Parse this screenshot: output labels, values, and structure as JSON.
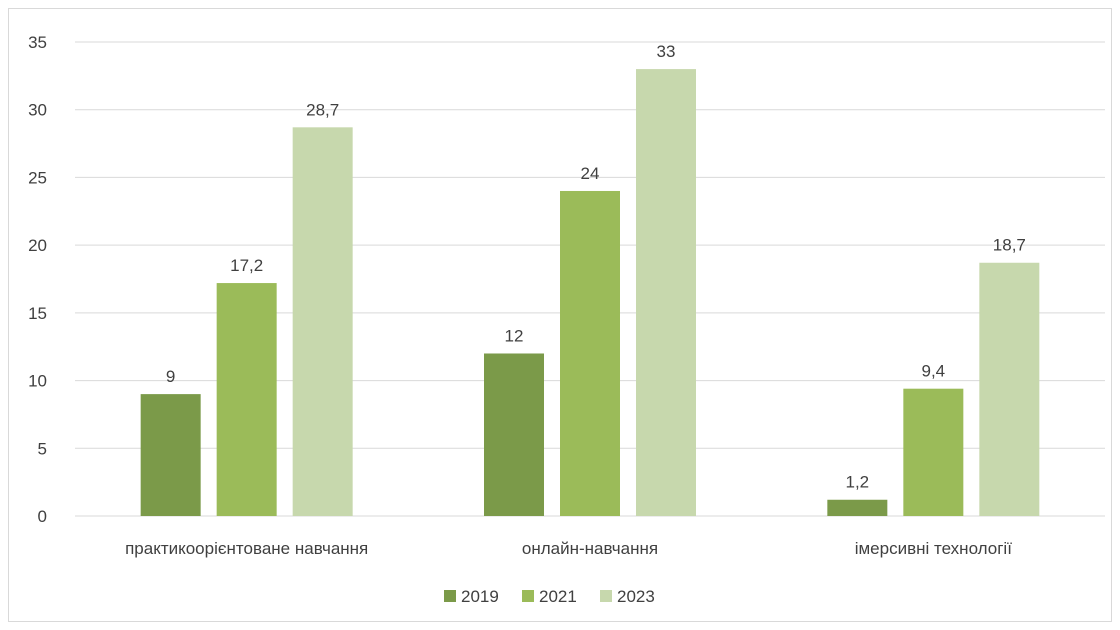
{
  "chart_data": {
    "type": "bar",
    "categories": [
      "практикоорієнтоване навчання",
      "онлайн-навчання",
      "імерсивні технології"
    ],
    "series": [
      {
        "name": "2019",
        "values": [
          9,
          12,
          1.2
        ],
        "labels": [
          "9",
          "12",
          "1,2"
        ],
        "color": "#7b9a49"
      },
      {
        "name": "2021",
        "values": [
          17.2,
          24,
          9.4
        ],
        "labels": [
          "17,2",
          "24",
          "9,4"
        ],
        "color": "#9bbb59"
      },
      {
        "name": "2023",
        "values": [
          28.7,
          33,
          18.7
        ],
        "labels": [
          "28,7",
          "33",
          "18,7"
        ],
        "color": "#c7d8ad"
      }
    ],
    "yticks": [
      "0",
      "5",
      "10",
      "15",
      "20",
      "25",
      "30",
      "35"
    ],
    "ylim": [
      0,
      35
    ],
    "grid": true,
    "legend_position": "bottom",
    "gridline_color": "#d9d9d9",
    "text_color": "#404040"
  }
}
